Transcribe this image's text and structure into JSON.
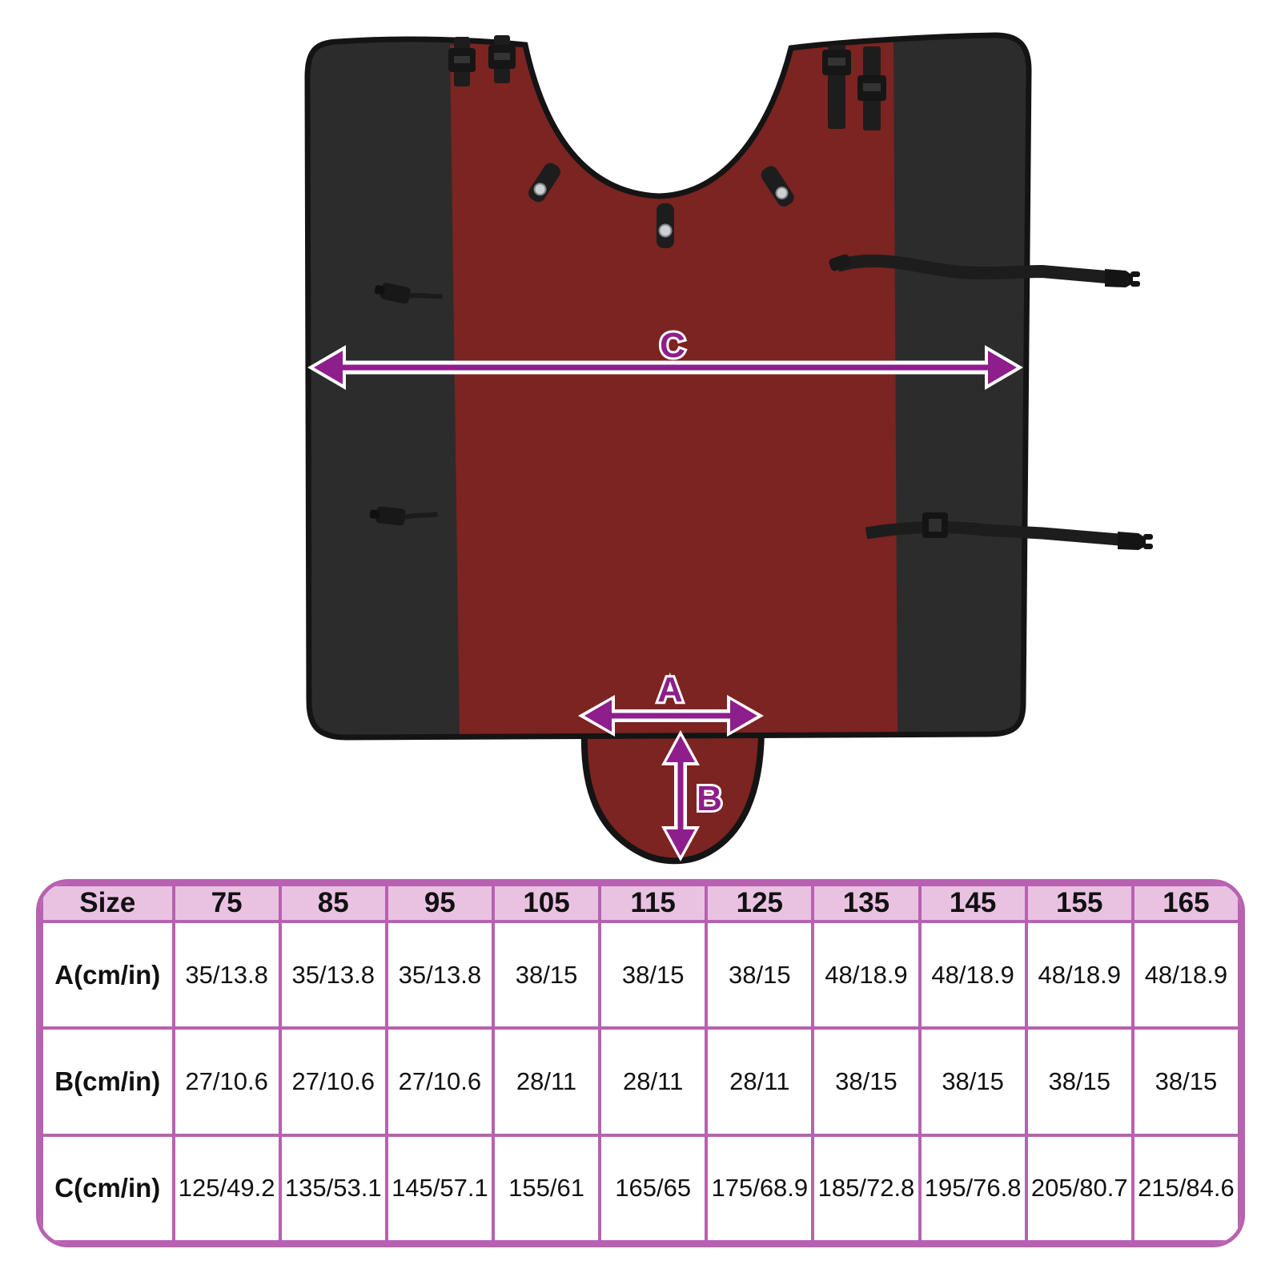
{
  "colors": {
    "page_bg": "#ffffff",
    "rug_black": "#2c2c2c",
    "rug_red": "#7b2422",
    "binding_black": "#141414",
    "strap_black": "#1d1d1d",
    "snap_silver": "#ccd0d3",
    "arrow_purple": "#8e1e8c",
    "table_border": "#b861b1",
    "table_header_bg": "#e9c2e2",
    "table_text": "#111111"
  },
  "diagram": {
    "label_c": "C",
    "label_a": "A",
    "label_b": "B"
  },
  "size_table": {
    "header": [
      "Size",
      "75",
      "85",
      "95",
      "105",
      "115",
      "125",
      "135",
      "145",
      "155",
      "165"
    ],
    "rows": [
      {
        "label": "A(cm/in)",
        "values": [
          "35/13.8",
          "35/13.8",
          "35/13.8",
          "38/15",
          "38/15",
          "38/15",
          "48/18.9",
          "48/18.9",
          "48/18.9",
          "48/18.9"
        ]
      },
      {
        "label": "B(cm/in)",
        "values": [
          "27/10.6",
          "27/10.6",
          "27/10.6",
          "28/11",
          "28/11",
          "28/11",
          "38/15",
          "38/15",
          "38/15",
          "38/15"
        ]
      },
      {
        "label": "C(cm/in)",
        "values": [
          "125/49.2",
          "135/53.1",
          "145/57.1",
          "155/61",
          "165/65",
          "175/68.9",
          "185/72.8",
          "195/76.8",
          "205/80.7",
          "215/84.6"
        ]
      }
    ]
  }
}
